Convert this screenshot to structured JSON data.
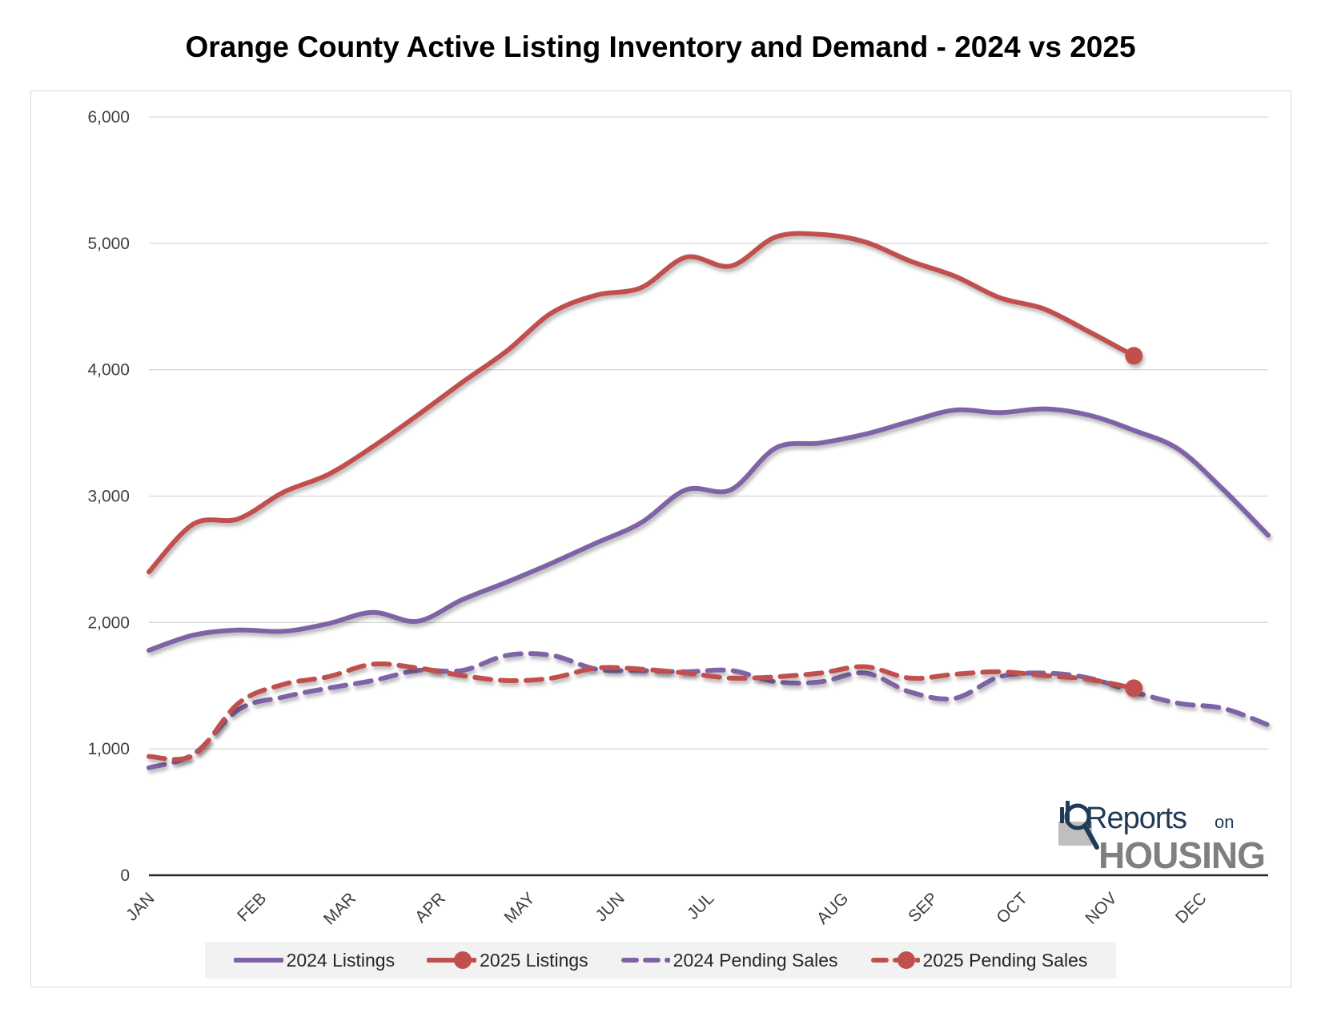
{
  "chart_data": {
    "type": "line",
    "title": "Orange County Active Listing Inventory and Demand - 2024 vs 2025",
    "xlabel": "",
    "ylabel": "",
    "ylim": [
      0,
      6000
    ],
    "y_ticks": [
      0,
      1000,
      2000,
      3000,
      4000,
      5000,
      6000
    ],
    "y_tick_labels": [
      "0",
      "1,000",
      "2,000",
      "3,000",
      "4,000",
      "5,000",
      "6,000"
    ],
    "x_tick_labels": [
      "JAN",
      "FEB",
      "MAR",
      "APR",
      "MAY",
      "JUN",
      "JUL",
      "AUG",
      "SEP",
      "OCT",
      "NOV",
      "DEC"
    ],
    "x_tick_positions": [
      0,
      1.25,
      2.25,
      3.25,
      4.25,
      5.25,
      6.25,
      7.75,
      8.75,
      9.75,
      10.75,
      11.75
    ],
    "x_range": [
      0,
      12.5
    ],
    "grid": true,
    "legend_position": "bottom",
    "series": [
      {
        "name": "2024 Listings",
        "color": "#7f63a6",
        "style": "solid",
        "marker": "none",
        "x": [
          0,
          0.5,
          1,
          1.5,
          2,
          2.5,
          3,
          3.5,
          4,
          4.5,
          5,
          5.5,
          6,
          6.5,
          7,
          7.5,
          8,
          8.5,
          9,
          9.5,
          10,
          10.5,
          11,
          11.5,
          12,
          12.5
        ],
        "values": [
          1780,
          1900,
          1940,
          1930,
          1990,
          2080,
          2010,
          2180,
          2320,
          2470,
          2630,
          2790,
          3050,
          3050,
          3380,
          3420,
          3490,
          3590,
          3680,
          3660,
          3690,
          3640,
          3520,
          3370,
          3050,
          2690
        ]
      },
      {
        "name": "2025 Listings",
        "color": "#c0504d",
        "style": "solid",
        "marker": "end-circle",
        "x": [
          0,
          0.5,
          1,
          1.5,
          2,
          2.5,
          3,
          3.5,
          4,
          4.5,
          5,
          5.5,
          6,
          6.5,
          7,
          7.5,
          8,
          8.5,
          9,
          9.5,
          10,
          10.5,
          11
        ],
        "values": [
          2400,
          2780,
          2820,
          3030,
          3170,
          3390,
          3640,
          3900,
          4150,
          4450,
          4590,
          4650,
          4890,
          4820,
          5050,
          5070,
          5010,
          4860,
          4740,
          4570,
          4480,
          4300,
          4110
        ]
      },
      {
        "name": "2024 Pending Sales",
        "color": "#7f63a6",
        "style": "dashed",
        "marker": "none",
        "x": [
          0,
          0.5,
          1,
          1.5,
          2,
          2.5,
          3,
          3.5,
          4,
          4.5,
          5,
          5.5,
          6,
          6.5,
          7,
          7.5,
          8,
          8.5,
          9,
          9.5,
          10,
          10.5,
          11,
          11.5,
          12,
          12.5
        ],
        "values": [
          850,
          960,
          1310,
          1410,
          1480,
          1540,
          1620,
          1620,
          1740,
          1740,
          1630,
          1620,
          1610,
          1620,
          1530,
          1530,
          1600,
          1450,
          1400,
          1570,
          1600,
          1560,
          1450,
          1360,
          1320,
          1190
        ]
      },
      {
        "name": "2025 Pending Sales",
        "color": "#c0504d",
        "style": "dashed",
        "marker": "end-circle",
        "x": [
          0,
          0.5,
          1,
          1.5,
          2,
          2.5,
          3,
          3.5,
          4,
          4.5,
          5,
          5.5,
          6,
          6.5,
          7,
          7.5,
          8,
          8.5,
          9,
          9.5,
          10,
          10.5,
          11
        ],
        "values": [
          940,
          950,
          1360,
          1510,
          1570,
          1670,
          1640,
          1580,
          1540,
          1560,
          1640,
          1630,
          1600,
          1560,
          1570,
          1600,
          1650,
          1560,
          1590,
          1610,
          1580,
          1550,
          1480
        ]
      }
    ]
  },
  "logo": {
    "line1": "Reports",
    "line1_small": "on",
    "line2": "HOUSING"
  }
}
